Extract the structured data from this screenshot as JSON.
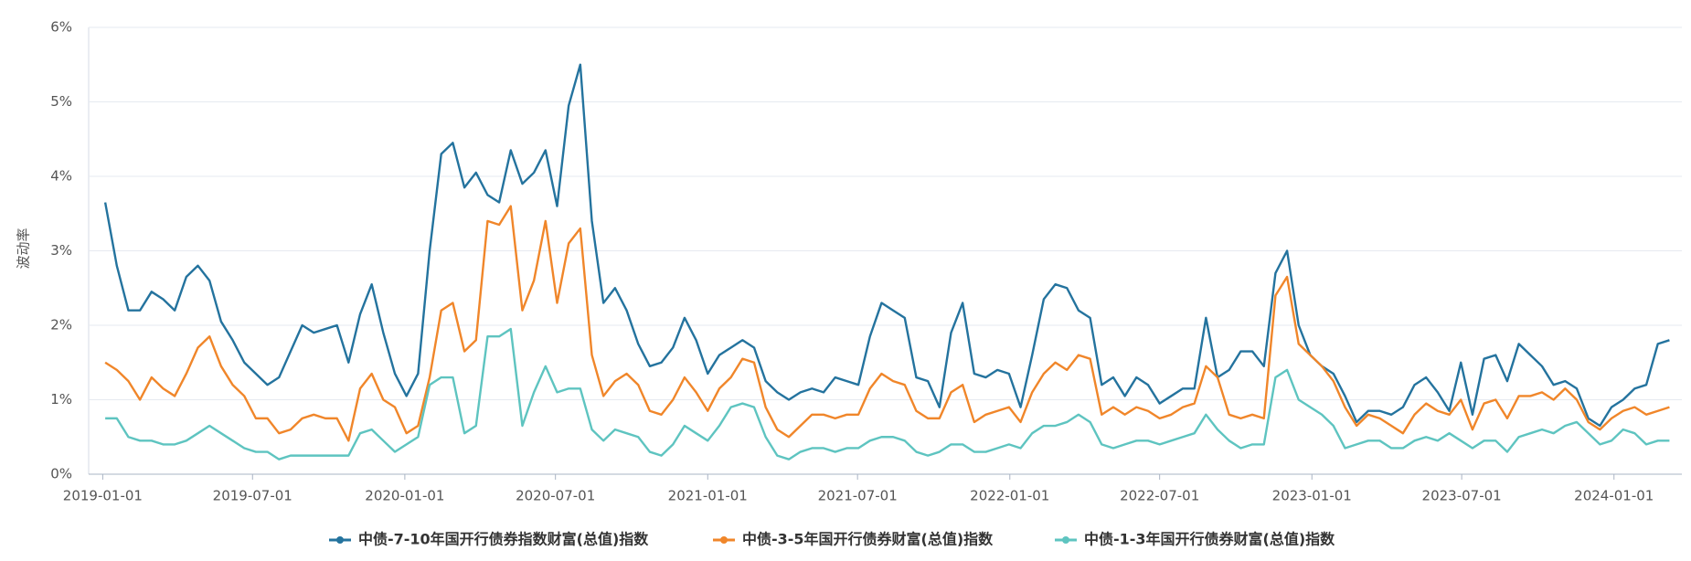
{
  "chart_data": {
    "type": "line",
    "y_label": "波动率",
    "x": [
      "2019-01-04",
      "2019-01-18",
      "2019-02-01",
      "2019-02-15",
      "2019-03-01",
      "2019-03-15",
      "2019-03-29",
      "2019-04-12",
      "2019-04-26",
      "2019-05-10",
      "2019-05-24",
      "2019-06-07",
      "2019-06-21",
      "2019-07-05",
      "2019-07-19",
      "2019-08-02",
      "2019-08-16",
      "2019-08-30",
      "2019-09-13",
      "2019-09-27",
      "2019-10-11",
      "2019-10-25",
      "2019-11-08",
      "2019-11-22",
      "2019-12-06",
      "2019-12-20",
      "2020-01-03",
      "2020-01-17",
      "2020-01-31",
      "2020-02-14",
      "2020-02-28",
      "2020-03-13",
      "2020-03-27",
      "2020-04-10",
      "2020-04-24",
      "2020-05-08",
      "2020-05-22",
      "2020-06-05",
      "2020-06-19",
      "2020-07-03",
      "2020-07-17",
      "2020-07-31",
      "2020-08-14",
      "2020-08-28",
      "2020-09-11",
      "2020-09-25",
      "2020-10-09",
      "2020-10-23",
      "2020-11-06",
      "2020-11-20",
      "2020-12-04",
      "2020-12-18",
      "2021-01-01",
      "2021-01-15",
      "2021-01-29",
      "2021-02-12",
      "2021-02-26",
      "2021-03-12",
      "2021-03-26",
      "2021-04-09",
      "2021-04-23",
      "2021-05-07",
      "2021-05-21",
      "2021-06-04",
      "2021-06-18",
      "2021-07-02",
      "2021-07-16",
      "2021-07-30",
      "2021-08-13",
      "2021-08-27",
      "2021-09-10",
      "2021-09-24",
      "2021-10-08",
      "2021-10-22",
      "2021-11-05",
      "2021-11-19",
      "2021-12-03",
      "2021-12-17",
      "2021-12-31",
      "2022-01-14",
      "2022-01-28",
      "2022-02-11",
      "2022-02-25",
      "2022-03-11",
      "2022-03-25",
      "2022-04-08",
      "2022-04-22",
      "2022-05-06",
      "2022-05-20",
      "2022-06-03",
      "2022-06-17",
      "2022-07-01",
      "2022-07-15",
      "2022-07-29",
      "2022-08-12",
      "2022-08-26",
      "2022-09-09",
      "2022-09-23",
      "2022-10-07",
      "2022-10-21",
      "2022-11-04",
      "2022-11-18",
      "2022-12-02",
      "2022-12-16",
      "2022-12-30",
      "2023-01-13",
      "2023-01-27",
      "2023-02-10",
      "2023-02-24",
      "2023-03-10",
      "2023-03-24",
      "2023-04-07",
      "2023-04-21",
      "2023-05-05",
      "2023-05-19",
      "2023-06-02",
      "2023-06-16",
      "2023-06-30",
      "2023-07-14",
      "2023-07-28",
      "2023-08-11",
      "2023-08-25",
      "2023-09-08",
      "2023-09-22",
      "2023-10-06",
      "2023-10-20",
      "2023-11-03",
      "2023-11-17",
      "2023-12-01",
      "2023-12-15",
      "2023-12-29",
      "2024-01-12",
      "2024-01-26",
      "2024-02-09",
      "2024-02-23",
      "2024-03-08"
    ],
    "series": [
      {
        "name": "中债-7-10年国开行债券指数财富(总值)指数",
        "color": "#24739e",
        "values": [
          3.65,
          2.8,
          2.2,
          2.2,
          2.45,
          2.35,
          2.2,
          2.65,
          2.8,
          2.6,
          2.05,
          1.8,
          1.5,
          1.35,
          1.2,
          1.3,
          1.65,
          2.0,
          1.9,
          1.95,
          2.0,
          1.5,
          2.15,
          2.55,
          1.9,
          1.35,
          1.05,
          1.35,
          3.0,
          4.3,
          4.45,
          3.85,
          4.05,
          3.75,
          3.65,
          4.35,
          3.9,
          4.05,
          4.35,
          3.6,
          4.95,
          5.5,
          3.4,
          2.3,
          2.5,
          2.2,
          1.75,
          1.45,
          1.5,
          1.7,
          2.1,
          1.8,
          1.35,
          1.6,
          1.7,
          1.8,
          1.7,
          1.25,
          1.1,
          1.0,
          1.1,
          1.15,
          1.1,
          1.3,
          1.25,
          1.2,
          1.85,
          2.3,
          2.2,
          2.1,
          1.3,
          1.25,
          0.9,
          1.9,
          2.3,
          1.35,
          1.3,
          1.4,
          1.35,
          0.9,
          1.6,
          2.35,
          2.55,
          2.5,
          2.2,
          2.1,
          1.2,
          1.3,
          1.05,
          1.3,
          1.2,
          0.95,
          1.05,
          1.15,
          1.15,
          2.1,
          1.3,
          1.4,
          1.65,
          1.65,
          1.45,
          2.7,
          3.0,
          2.0,
          1.6,
          1.45,
          1.35,
          1.05,
          0.7,
          0.85,
          0.85,
          0.8,
          0.9,
          1.2,
          1.3,
          1.1,
          0.85,
          1.5,
          0.8,
          1.55,
          1.6,
          1.25,
          1.75,
          1.6,
          1.45,
          1.2,
          1.25,
          1.15,
          0.75,
          0.65,
          0.9,
          1.0,
          1.15,
          1.2,
          1.75,
          1.8
        ]
      },
      {
        "name": "中债-3-5年国开行债券财富(总值)指数",
        "color": "#f0862a",
        "values": [
          1.5,
          1.4,
          1.25,
          1.0,
          1.3,
          1.15,
          1.05,
          1.35,
          1.7,
          1.85,
          1.45,
          1.2,
          1.05,
          0.75,
          0.75,
          0.55,
          0.6,
          0.75,
          0.8,
          0.75,
          0.75,
          0.45,
          1.15,
          1.35,
          1.0,
          0.9,
          0.55,
          0.65,
          1.3,
          2.2,
          2.3,
          1.65,
          1.8,
          3.4,
          3.35,
          3.6,
          2.2,
          2.6,
          3.4,
          2.3,
          3.1,
          3.3,
          1.6,
          1.05,
          1.25,
          1.35,
          1.2,
          0.85,
          0.8,
          1.0,
          1.3,
          1.1,
          0.85,
          1.15,
          1.3,
          1.55,
          1.5,
          0.9,
          0.6,
          0.5,
          0.65,
          0.8,
          0.8,
          0.75,
          0.8,
          0.8,
          1.15,
          1.35,
          1.25,
          1.2,
          0.85,
          0.75,
          0.75,
          1.1,
          1.2,
          0.7,
          0.8,
          0.85,
          0.9,
          0.7,
          1.1,
          1.35,
          1.5,
          1.4,
          1.6,
          1.55,
          0.8,
          0.9,
          0.8,
          0.9,
          0.85,
          0.75,
          0.8,
          0.9,
          0.95,
          1.45,
          1.3,
          0.8,
          0.75,
          0.8,
          0.75,
          2.4,
          2.65,
          1.75,
          1.6,
          1.45,
          1.25,
          0.9,
          0.65,
          0.8,
          0.75,
          0.65,
          0.55,
          0.8,
          0.95,
          0.85,
          0.8,
          1.0,
          0.6,
          0.95,
          1.0,
          0.75,
          1.05,
          1.05,
          1.1,
          1.0,
          1.15,
          1.0,
          0.7,
          0.6,
          0.75,
          0.85,
          0.9,
          0.8,
          0.85,
          0.9
        ]
      },
      {
        "name": "中债-1-3年国开行债券财富(总值)指数",
        "color": "#5ec4c0",
        "values": [
          0.75,
          0.75,
          0.5,
          0.45,
          0.45,
          0.4,
          0.4,
          0.45,
          0.55,
          0.65,
          0.55,
          0.45,
          0.35,
          0.3,
          0.3,
          0.2,
          0.25,
          0.25,
          0.25,
          0.25,
          0.25,
          0.25,
          0.55,
          0.6,
          0.45,
          0.3,
          0.4,
          0.5,
          1.2,
          1.3,
          1.3,
          0.55,
          0.65,
          1.85,
          1.85,
          1.95,
          0.65,
          1.1,
          1.45,
          1.1,
          1.15,
          1.15,
          0.6,
          0.45,
          0.6,
          0.55,
          0.5,
          0.3,
          0.25,
          0.4,
          0.65,
          0.55,
          0.45,
          0.65,
          0.9,
          0.95,
          0.9,
          0.5,
          0.25,
          0.2,
          0.3,
          0.35,
          0.35,
          0.3,
          0.35,
          0.35,
          0.45,
          0.5,
          0.5,
          0.45,
          0.3,
          0.25,
          0.3,
          0.4,
          0.4,
          0.3,
          0.3,
          0.35,
          0.4,
          0.35,
          0.55,
          0.65,
          0.65,
          0.7,
          0.8,
          0.7,
          0.4,
          0.35,
          0.4,
          0.45,
          0.45,
          0.4,
          0.45,
          0.5,
          0.55,
          0.8,
          0.6,
          0.45,
          0.35,
          0.4,
          0.4,
          1.3,
          1.4,
          1.0,
          0.9,
          0.8,
          0.65,
          0.35,
          0.4,
          0.45,
          0.45,
          0.35,
          0.35,
          0.45,
          0.5,
          0.45,
          0.55,
          0.45,
          0.35,
          0.45,
          0.45,
          0.3,
          0.5,
          0.55,
          0.6,
          0.55,
          0.65,
          0.7,
          0.55,
          0.4,
          0.45,
          0.6,
          0.55,
          0.4,
          0.45,
          0.45
        ]
      }
    ],
    "xlim": [
      "2018-12-15",
      "2024-03-23"
    ],
    "xticks": [
      "2019-01-01",
      "2019-07-01",
      "2020-01-01",
      "2020-07-01",
      "2021-01-01",
      "2021-07-01",
      "2022-01-01",
      "2022-07-01",
      "2023-01-01",
      "2023-07-01",
      "2024-01-01"
    ],
    "ylim": [
      0,
      6
    ],
    "yticks": [
      {
        "value": 0,
        "label": "0%"
      },
      {
        "value": 1,
        "label": "1%"
      },
      {
        "value": 2,
        "label": "2%"
      },
      {
        "value": 3,
        "label": "3%"
      },
      {
        "value": 4,
        "label": "4%"
      },
      {
        "value": 5,
        "label": "5%"
      },
      {
        "value": 6,
        "label": "6%"
      }
    ],
    "grid": true,
    "legend": "bottom"
  }
}
